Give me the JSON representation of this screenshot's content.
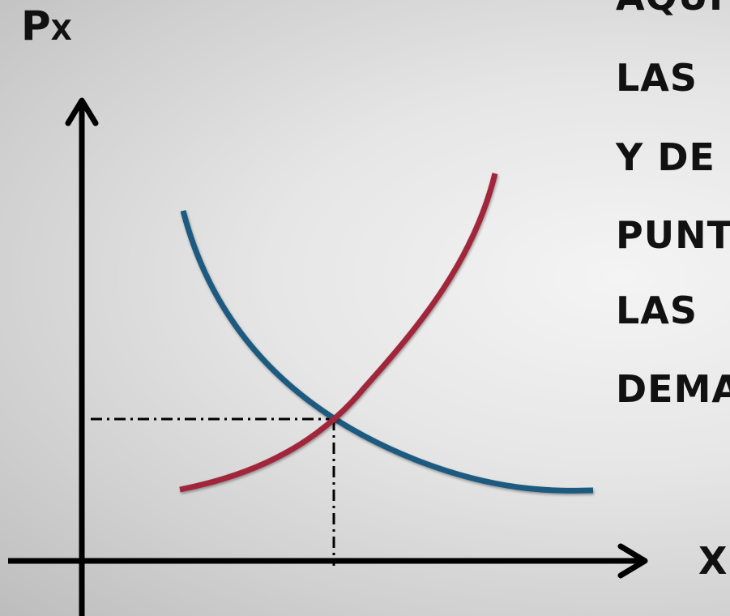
{
  "axes": {
    "y_label_main": "P",
    "y_label_sub": "X",
    "x_label": "X"
  },
  "side_text": {
    "lines": [
      "AQUÍ",
      "LAS",
      "Y DE",
      "PUNT",
      "LAS",
      "DEMA"
    ]
  },
  "colors": {
    "demand_curve": "#1f5a80",
    "supply_curve": "#a1283a",
    "axis": "#000000"
  }
}
